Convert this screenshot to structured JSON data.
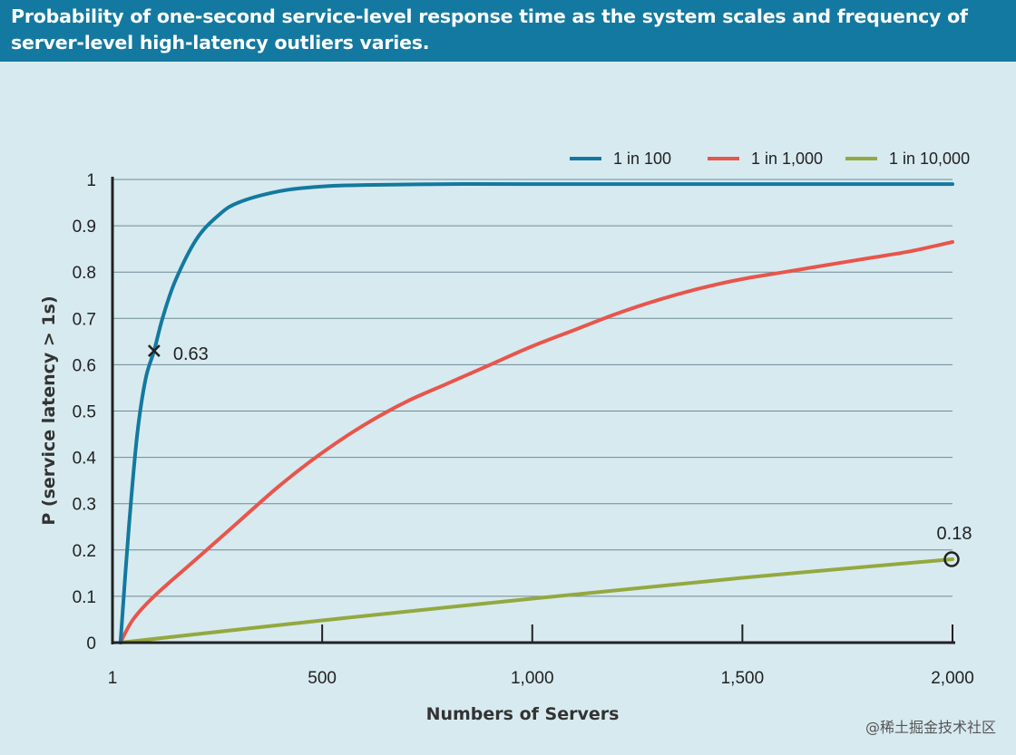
{
  "chart_data": {
    "type": "line",
    "title": "Probability of one-second service-level response time as the system scales and frequency of server-level high-latency outliers varies.",
    "xlabel": "Numbers of Servers",
    "ylabel": "P (service latency > 1s)",
    "xlim": [
      1,
      2000
    ],
    "ylim": [
      0,
      1
    ],
    "x_ticks": [
      1,
      500,
      1000,
      1500,
      2000
    ],
    "x_tick_labels": [
      "1",
      "500",
      "1,000",
      "1,500",
      "2,000"
    ],
    "y_ticks": [
      0,
      0.1,
      0.2,
      0.3,
      0.4,
      0.5,
      0.6,
      0.7,
      0.8,
      0.9,
      1
    ],
    "y_tick_labels": [
      "0",
      "0.1",
      "0.2",
      "0.3",
      "0.4",
      "0.5",
      "0.6",
      "0.7",
      "0.8",
      "0.9",
      "1"
    ],
    "grid": "horizontal",
    "legend_position": "top-right",
    "series": [
      {
        "name": "1 in 100",
        "color": "#13799f",
        "x": [
          20,
          40,
          60,
          80,
          100,
          120,
          150,
          200,
          250,
          300,
          400,
          500,
          600,
          800,
          1000,
          1500,
          2000
        ],
        "y": [
          0.0,
          0.25,
          0.45,
          0.57,
          0.63,
          0.7,
          0.78,
          0.87,
          0.92,
          0.95,
          0.975,
          0.985,
          0.988,
          0.99,
          0.99,
          0.99,
          0.99
        ]
      },
      {
        "name": "1 in 1,000",
        "color": "#e8554b",
        "x": [
          20,
          50,
          100,
          200,
          300,
          400,
          500,
          600,
          700,
          800,
          900,
          1000,
          1100,
          1200,
          1300,
          1400,
          1500,
          1600,
          1700,
          1800,
          1900,
          2000
        ],
        "y": [
          0.0,
          0.05,
          0.1,
          0.18,
          0.26,
          0.34,
          0.41,
          0.47,
          0.52,
          0.56,
          0.6,
          0.64,
          0.675,
          0.71,
          0.74,
          0.765,
          0.785,
          0.8,
          0.815,
          0.83,
          0.845,
          0.865
        ]
      },
      {
        "name": "1 in 10,000",
        "color": "#94a83f",
        "x": [
          20,
          500,
          1000,
          1500,
          2000
        ],
        "y": [
          0.0,
          0.048,
          0.095,
          0.14,
          0.18
        ]
      }
    ],
    "annotations": [
      {
        "label": "0.63",
        "x": 100,
        "y": 0.63,
        "marker": "x"
      },
      {
        "label": "0.18",
        "x": 2000,
        "y": 0.18,
        "marker": "circle"
      }
    ]
  },
  "watermark": "@稀土掘金技术社区"
}
